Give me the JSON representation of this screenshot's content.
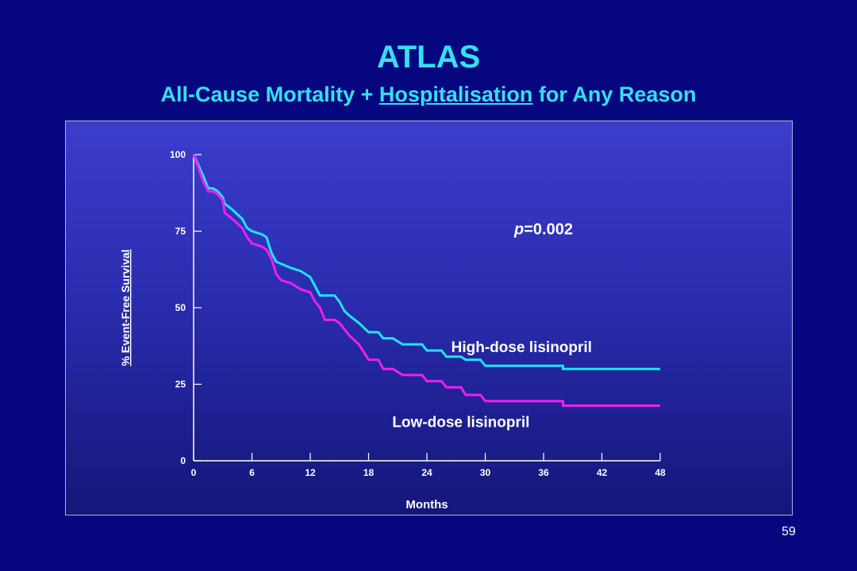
{
  "slide": {
    "title": "ATLAS",
    "subtitle_pre": "All-Cause Mortality + ",
    "subtitle_underlined": "Hospitalisation",
    "subtitle_post": " for Any Reason",
    "page_number": "59"
  },
  "colors": {
    "background": "#06077f",
    "title": "#35dff0",
    "high_dose": "#1fe3f5",
    "low_dose": "#f01ff0",
    "text": "#ffffff"
  },
  "chart_data": {
    "type": "line",
    "step": true,
    "title": "",
    "xlabel": "Months",
    "ylabel": "% Event-Free Survival",
    "xlim": [
      0,
      48
    ],
    "ylim": [
      0,
      100
    ],
    "xticks": [
      0,
      6,
      12,
      18,
      24,
      30,
      36,
      42,
      48
    ],
    "yticks": [
      0,
      25,
      50,
      75,
      100
    ],
    "annotation": "p=0.002",
    "series": [
      {
        "name": "High-dose lisinopril",
        "color": "#1fe3f5",
        "points": [
          [
            0,
            100
          ],
          [
            1,
            93
          ],
          [
            1.5,
            89
          ],
          [
            2,
            89
          ],
          [
            2.5,
            88
          ],
          [
            3,
            86
          ],
          [
            3.2,
            84
          ],
          [
            4,
            82
          ],
          [
            5,
            79
          ],
          [
            5.5,
            76
          ],
          [
            6,
            75
          ],
          [
            7,
            74
          ],
          [
            7.5,
            73
          ],
          [
            8,
            68
          ],
          [
            8.5,
            65
          ],
          [
            10,
            63
          ],
          [
            11,
            62
          ],
          [
            12,
            60
          ],
          [
            12.5,
            57
          ],
          [
            13,
            54
          ],
          [
            14.5,
            54
          ],
          [
            15,
            52
          ],
          [
            15.5,
            49
          ],
          [
            16,
            47.5
          ],
          [
            17,
            45
          ],
          [
            18,
            42
          ],
          [
            19,
            42
          ],
          [
            19.5,
            40
          ],
          [
            20.5,
            40
          ],
          [
            21.5,
            38
          ],
          [
            23.5,
            38
          ],
          [
            24,
            36
          ],
          [
            25.5,
            36
          ],
          [
            26,
            34
          ],
          [
            27.5,
            34
          ],
          [
            28,
            33
          ],
          [
            29.5,
            33
          ],
          [
            30,
            31
          ],
          [
            38,
            31
          ],
          [
            38,
            30
          ],
          [
            48,
            30
          ]
        ]
      },
      {
        "name": "Low-dose lisinopril",
        "color": "#f01ff0",
        "points": [
          [
            0,
            100
          ],
          [
            1,
            91
          ],
          [
            1.5,
            88
          ],
          [
            2,
            88
          ],
          [
            2.5,
            87
          ],
          [
            3,
            85
          ],
          [
            3.2,
            81
          ],
          [
            4,
            79
          ],
          [
            5,
            76
          ],
          [
            5.5,
            73
          ],
          [
            6,
            71
          ],
          [
            7,
            70
          ],
          [
            7.5,
            69
          ],
          [
            8,
            66
          ],
          [
            8.5,
            61
          ],
          [
            9,
            59
          ],
          [
            10,
            58
          ],
          [
            11,
            56
          ],
          [
            12,
            55
          ],
          [
            12.5,
            52
          ],
          [
            13,
            50
          ],
          [
            13.5,
            46
          ],
          [
            14.5,
            46
          ],
          [
            15,
            45
          ],
          [
            15.5,
            43
          ],
          [
            16,
            41
          ],
          [
            17,
            38
          ],
          [
            18,
            33
          ],
          [
            19,
            33
          ],
          [
            19.5,
            30
          ],
          [
            20.5,
            30
          ],
          [
            21.5,
            28
          ],
          [
            23.5,
            28
          ],
          [
            24,
            26
          ],
          [
            25.5,
            26
          ],
          [
            26,
            24
          ],
          [
            27.5,
            24
          ],
          [
            28,
            21.5
          ],
          [
            29.5,
            21.5
          ],
          [
            30,
            19.5
          ],
          [
            38,
            19.5
          ],
          [
            38,
            18
          ],
          [
            48,
            18
          ]
        ]
      }
    ]
  }
}
